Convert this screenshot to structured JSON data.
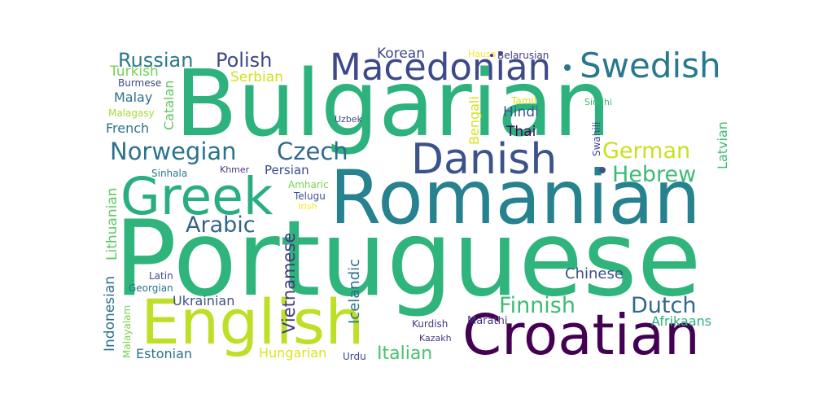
{
  "words": [
    {
      "key": "portuguese",
      "text": "Portuguese",
      "color": "#2fb47c"
    },
    {
      "key": "bulgarian",
      "text": "Bulgarian",
      "color": "#2db27d"
    },
    {
      "key": "romanian",
      "text": "Romanian",
      "color": "#26828e"
    },
    {
      "key": "croatian",
      "text": "Croatian",
      "color": "#440154"
    },
    {
      "key": "english",
      "text": "English",
      "color": "#bddf26"
    },
    {
      "key": "greek",
      "text": "Greek",
      "color": "#29af7f"
    },
    {
      "key": "macedonian",
      "text": "Macedonian",
      "color": "#3e4989"
    },
    {
      "key": "swedish",
      "text": "Swedish",
      "color": "#2a788e"
    },
    {
      "key": "danish",
      "text": "Danish",
      "color": "#3b528b"
    },
    {
      "key": "norwegian",
      "text": "Norwegian",
      "color": "#2c728e"
    },
    {
      "key": "czech",
      "text": "Czech",
      "color": "#31688e"
    },
    {
      "key": "arabic",
      "text": "Arabic",
      "color": "#33638d"
    },
    {
      "key": "german",
      "text": "German",
      "color": "#c8e020"
    },
    {
      "key": "hebrew",
      "text": "Hebrew",
      "color": "#3dbc74"
    },
    {
      "key": "finnish",
      "text": "Finnish",
      "color": "#3dbc74"
    },
    {
      "key": "dutch",
      "text": "Dutch",
      "color": "#31688e"
    },
    {
      "key": "russian",
      "text": "Russian",
      "color": "#2a788e"
    },
    {
      "key": "polish",
      "text": "Polish",
      "color": "#3e4989"
    },
    {
      "key": "korean",
      "text": "Korean",
      "color": "#3e4989"
    },
    {
      "key": "hausa",
      "text": "Hausa",
      "color": "#fde725"
    },
    {
      "key": "belarusian",
      "text": "Belarusian",
      "color": "#443983"
    },
    {
      "key": "turkish",
      "text": "Turkish",
      "color": "#75d054"
    },
    {
      "key": "burmese",
      "text": "Burmese",
      "color": "#3e4989"
    },
    {
      "key": "serbian",
      "text": "Serbian",
      "color": "#d2e21b"
    },
    {
      "key": "malay",
      "text": "Malay",
      "color": "#2c728e"
    },
    {
      "key": "malagasy",
      "text": "Malagasy",
      "color": "#a5db36"
    },
    {
      "key": "french",
      "text": "French",
      "color": "#2c728e"
    },
    {
      "key": "catalan",
      "text": "Catalan",
      "color": "#5ec962"
    },
    {
      "key": "bengali",
      "text": "Bengali",
      "color": "#d8e219"
    },
    {
      "key": "hindi",
      "text": "Hindi",
      "color": "#39568c"
    },
    {
      "key": "tamil",
      "text": "Tamil",
      "color": "#dde318"
    },
    {
      "key": "sindhi",
      "text": "Sindhi",
      "color": "#3dbc74"
    },
    {
      "key": "uzbek",
      "text": "Uzbek",
      "color": "#3e4989"
    },
    {
      "key": "thai",
      "text": "Thai",
      "color": "#440154"
    },
    {
      "key": "swahili",
      "text": "Swahili",
      "color": "#3e4989"
    },
    {
      "key": "latvian",
      "text": "Latvian",
      "color": "#3dbc74"
    },
    {
      "key": "sinhala",
      "text": "Sinhala",
      "color": "#2a788e"
    },
    {
      "key": "khmer",
      "text": "Khmer",
      "color": "#443983"
    },
    {
      "key": "persian",
      "text": "Persian",
      "color": "#3e4989"
    },
    {
      "key": "amharic",
      "text": "Amharic",
      "color": "#7ad151"
    },
    {
      "key": "telugu",
      "text": "Telugu",
      "color": "#3b528b"
    },
    {
      "key": "irish",
      "text": "Irish",
      "color": "#fde725"
    },
    {
      "key": "lithuanian",
      "text": "Lithuanian",
      "color": "#5ec962"
    },
    {
      "key": "indonesian",
      "text": "Indonesian",
      "color": "#2c728e"
    },
    {
      "key": "vietnamese",
      "text": "Vietnamese",
      "color": "#443983"
    },
    {
      "key": "icelandic",
      "text": "Icelandic",
      "color": "#2c728e"
    },
    {
      "key": "latin",
      "text": "Latin",
      "color": "#3e4989"
    },
    {
      "key": "georgian",
      "text": "Georgian",
      "color": "#2c728e"
    },
    {
      "key": "ukrainian",
      "text": "Ukrainian",
      "color": "#3b528b"
    },
    {
      "key": "malayalam",
      "text": "Malayalam",
      "color": "#7ad151"
    },
    {
      "key": "estonian",
      "text": "Estonian",
      "color": "#2c728e"
    },
    {
      "key": "hungarian",
      "text": "Hungarian",
      "color": "#dde318"
    },
    {
      "key": "urdu",
      "text": "Urdu",
      "color": "#3e4989"
    },
    {
      "key": "italian",
      "text": "Italian",
      "color": "#4ac16d"
    },
    {
      "key": "kurdish",
      "text": "Kurdish",
      "color": "#443983"
    },
    {
      "key": "kazakh",
      "text": "Kazakh",
      "color": "#443983"
    },
    {
      "key": "marathi",
      "text": "Marathi",
      "color": "#443983"
    },
    {
      "key": "chinese",
      "text": "Chinese",
      "color": "#3b528b"
    },
    {
      "key": "afrikaans",
      "text": "Afrikaans",
      "color": "#2db27d"
    }
  ]
}
